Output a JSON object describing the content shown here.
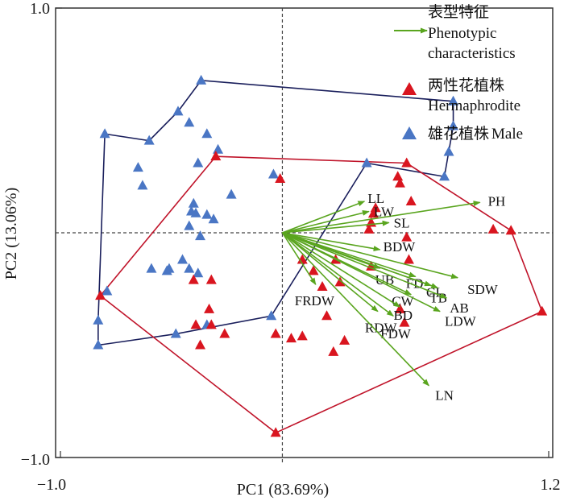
{
  "chart_data": {
    "type": "scatter",
    "subtype": "PCA biplot",
    "title": "",
    "xlabel": "PC1 (83.69%)",
    "ylabel": "PC2 (13.06%)",
    "xlim": [
      -1.0,
      1.2
    ],
    "ylim": [
      -1.0,
      1.0
    ],
    "xticks": [
      {
        "value": -1.0,
        "label": "−1.0"
      },
      {
        "value": 1.2,
        "label": "1.2"
      }
    ],
    "yticks": [
      {
        "value": 1.0,
        "label": "1.0"
      },
      {
        "value": -1.0,
        "label": "−1.0"
      }
    ],
    "reference_lines": {
      "x": 0,
      "y": 0,
      "style": "dashed"
    },
    "grid": false,
    "legend": {
      "position": "top-right",
      "entries": [
        {
          "key": "vectors",
          "symbol": "arrow",
          "color": "#5aa51f",
          "label_cn": "表型特征",
          "label_en_line1": "Phenotypic",
          "label_en_line2": "characteristics"
        },
        {
          "key": "hermaphrodite",
          "symbol": "triangle",
          "color": "#d9151f",
          "label_cn": "两性花植株",
          "label_en": "Hermaphrodite"
        },
        {
          "key": "male",
          "symbol": "triangle",
          "color": "#4a76c4",
          "label_cn": "雄花植株",
          "label_en": "Male"
        }
      ]
    },
    "colors": {
      "vector": "#5aa51f",
      "hermaphrodite": "#d9151f",
      "male": "#4a76c4",
      "male_hull": "#1a1f5c",
      "herm_hull": "#c0142a"
    },
    "vectors": [
      {
        "name": "PH",
        "x": 0.89,
        "y": 0.135
      },
      {
        "name": "LL",
        "x": 0.37,
        "y": 0.14
      },
      {
        "name": "LW",
        "x": 0.39,
        "y": 0.095
      },
      {
        "name": "SL",
        "x": 0.48,
        "y": 0.045
      },
      {
        "name": "BDW",
        "x": 0.44,
        "y": -0.075
      },
      {
        "name": "UB",
        "x": 0.44,
        "y": -0.158
      },
      {
        "name": "FD",
        "x": 0.6,
        "y": -0.195
      },
      {
        "name": "CI",
        "x": 0.67,
        "y": -0.235
      },
      {
        "name": "TB",
        "x": 0.7,
        "y": -0.245
      },
      {
        "name": "SDW",
        "x": 0.79,
        "y": -0.2
      },
      {
        "name": "AB",
        "x": 0.74,
        "y": -0.29
      },
      {
        "name": "CW",
        "x": 0.58,
        "y": -0.275
      },
      {
        "name": "LDW",
        "x": 0.71,
        "y": -0.35
      },
      {
        "name": "BD",
        "x": 0.53,
        "y": -0.33
      },
      {
        "name": "FDW",
        "x": 0.5,
        "y": -0.37
      },
      {
        "name": "RDW",
        "x": 0.43,
        "y": -0.35
      },
      {
        "name": "FRDW",
        "x": 0.15,
        "y": -0.23
      },
      {
        "name": "LN",
        "x": 0.66,
        "y": -0.68
      }
    ],
    "series": [
      {
        "name": "Male",
        "points": [
          [
            -0.366,
            0.678
          ],
          [
            -0.47,
            0.54
          ],
          [
            -0.42,
            0.49
          ],
          [
            -0.34,
            0.44
          ],
          [
            -0.29,
            0.37
          ],
          [
            -0.6,
            0.41
          ],
          [
            -0.38,
            0.31
          ],
          [
            -0.04,
            0.26
          ],
          [
            0.38,
            0.31
          ],
          [
            0.77,
            0.585
          ],
          [
            0.77,
            0.475
          ],
          [
            -0.8,
            0.44
          ],
          [
            -0.65,
            0.29
          ],
          [
            -0.23,
            0.17
          ],
          [
            -0.41,
            0.095
          ],
          [
            -0.39,
            0.087
          ],
          [
            0.73,
            0.25
          ],
          [
            0.75,
            0.36
          ],
          [
            -0.63,
            0.21
          ],
          [
            -0.4,
            0.13
          ],
          [
            -0.34,
            0.08
          ],
          [
            -0.31,
            0.06
          ],
          [
            -0.42,
            0.03
          ],
          [
            -0.37,
            -0.015
          ],
          [
            -0.45,
            -0.12
          ],
          [
            -0.51,
            -0.16
          ],
          [
            -0.42,
            -0.16
          ],
          [
            -0.59,
            -0.16
          ],
          [
            -0.52,
            -0.17
          ],
          [
            -0.38,
            -0.18
          ],
          [
            -0.83,
            -0.39
          ],
          [
            -0.83,
            -0.5
          ],
          [
            -0.48,
            -0.45
          ],
          [
            -0.34,
            -0.41
          ],
          [
            -0.05,
            -0.37
          ],
          [
            -0.79,
            -0.26
          ]
        ]
      },
      {
        "name": "Hermaphrodite",
        "points": [
          [
            -0.3,
            0.34
          ],
          [
            -0.01,
            0.24
          ],
          [
            0.56,
            0.31
          ],
          [
            0.52,
            0.25
          ],
          [
            0.53,
            0.22
          ],
          [
            0.58,
            0.14
          ],
          [
            0.42,
            0.11
          ],
          [
            0.41,
            0.085
          ],
          [
            0.4,
            0.045
          ],
          [
            0.39,
            0.015
          ],
          [
            0.95,
            0.015
          ],
          [
            1.03,
            0.01
          ],
          [
            0.56,
            -0.02
          ],
          [
            1.17,
            -0.35
          ],
          [
            0.57,
            -0.12
          ],
          [
            0.24,
            -0.12
          ],
          [
            0.4,
            -0.15
          ],
          [
            0.09,
            -0.12
          ],
          [
            0.14,
            -0.17
          ],
          [
            0.18,
            -0.24
          ],
          [
            0.26,
            -0.22
          ],
          [
            0.53,
            -0.34
          ],
          [
            0.55,
            -0.4
          ],
          [
            -0.4,
            -0.21
          ],
          [
            -0.32,
            -0.21
          ],
          [
            -0.33,
            -0.34
          ],
          [
            -0.32,
            -0.41
          ],
          [
            -0.39,
            -0.41
          ],
          [
            -0.26,
            -0.45
          ],
          [
            -0.37,
            -0.5
          ],
          [
            0.04,
            -0.47
          ],
          [
            -0.03,
            -0.45
          ],
          [
            0.23,
            -0.53
          ],
          [
            -0.82,
            -0.28
          ],
          [
            -0.03,
            -0.89
          ],
          [
            0.28,
            -0.48
          ],
          [
            0.2,
            -0.37
          ],
          [
            0.09,
            -0.46
          ]
        ]
      }
    ],
    "hulls": {
      "male": [
        [
          -0.366,
          0.678
        ],
        [
          0.77,
          0.585
        ],
        [
          0.77,
          0.475
        ],
        [
          0.73,
          0.25
        ],
        [
          0.38,
          0.31
        ],
        [
          -0.05,
          -0.37
        ],
        [
          -0.48,
          -0.45
        ],
        [
          -0.83,
          -0.5
        ],
        [
          -0.83,
          -0.39
        ],
        [
          -0.8,
          0.44
        ],
        [
          -0.6,
          0.41
        ],
        [
          -0.47,
          0.54
        ]
      ],
      "hermaphrodite": [
        [
          -0.3,
          0.34
        ],
        [
          0.56,
          0.31
        ],
        [
          1.03,
          0.01
        ],
        [
          1.17,
          -0.35
        ],
        [
          -0.03,
          -0.89
        ],
        [
          -0.82,
          -0.28
        ]
      ]
    }
  }
}
